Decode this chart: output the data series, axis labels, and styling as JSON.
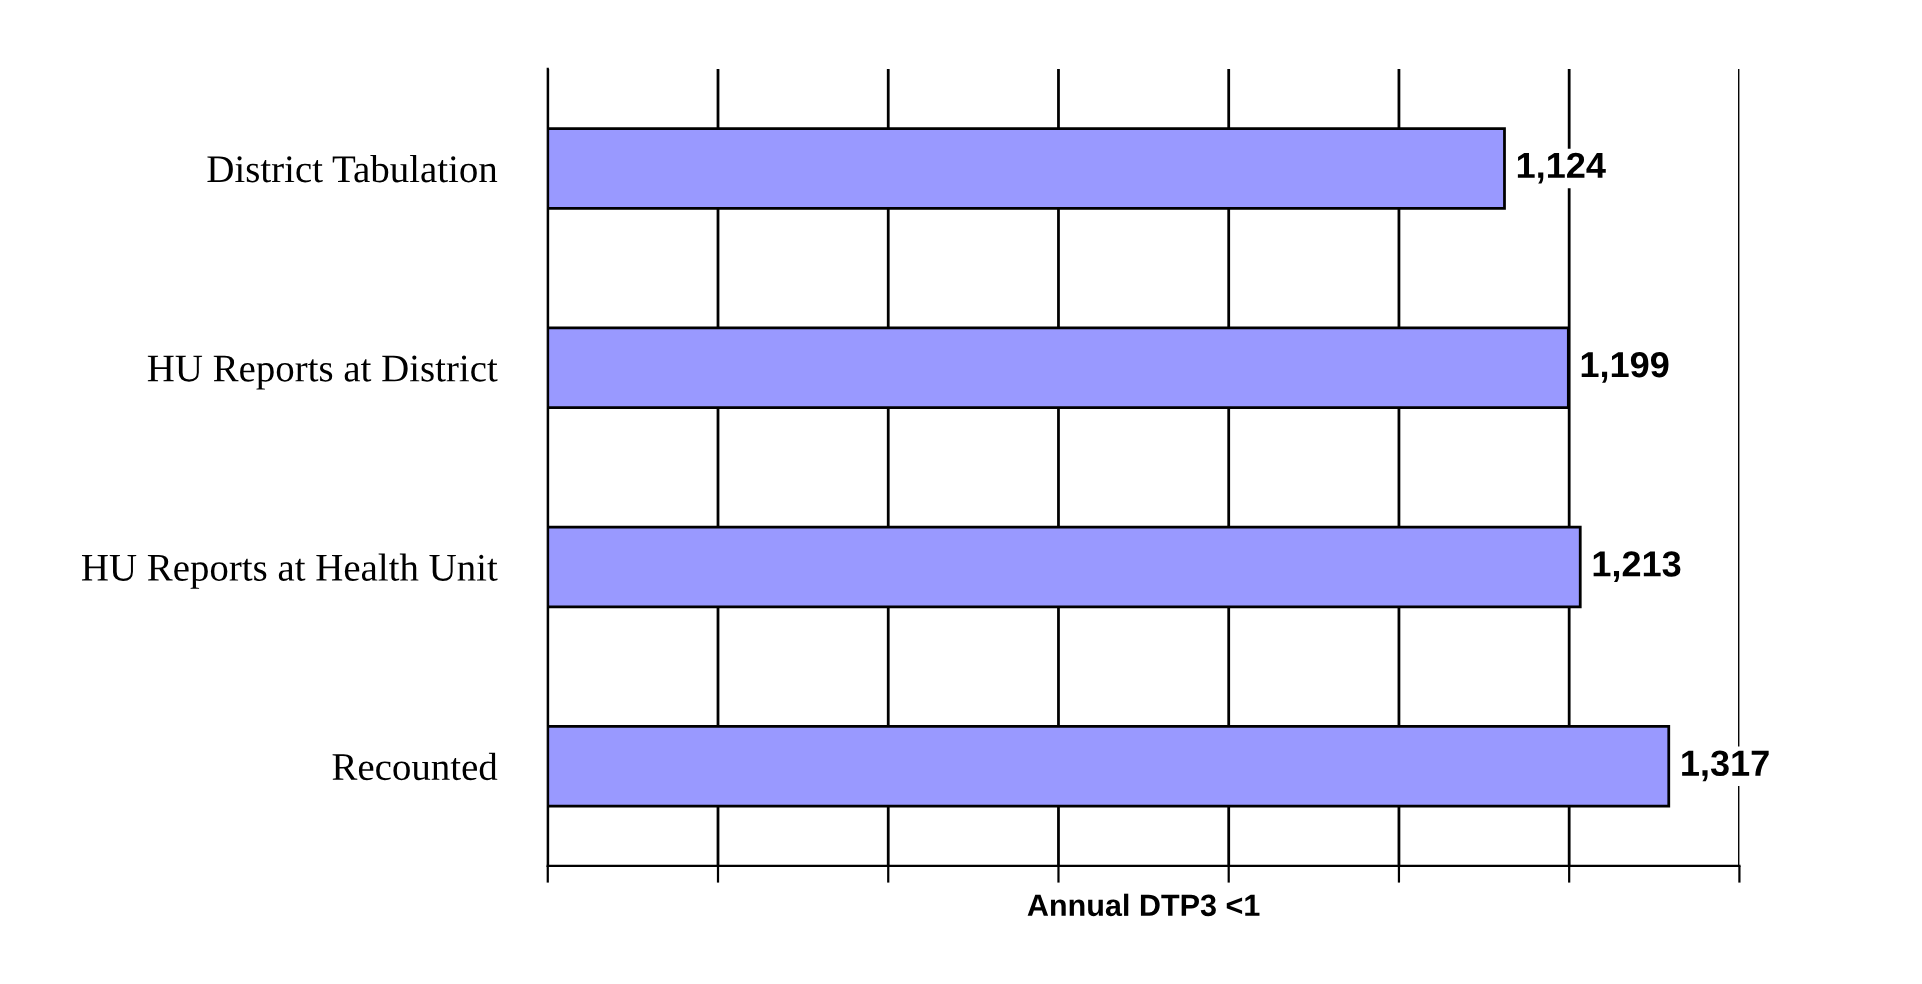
{
  "chart_data": {
    "type": "bar",
    "orientation": "horizontal",
    "xlabel": "Annual DTP3 <1",
    "categories": [
      "District Tabulation",
      "HU Reports at District",
      "HU Reports at Health Unit",
      "Recounted"
    ],
    "values": [
      1124,
      1199,
      1213,
      1317
    ],
    "value_labels": [
      "1,124",
      "1,199",
      "1,213",
      "1,317"
    ],
    "color": "#9999ff",
    "xlim": [
      0,
      1400
    ],
    "xticks": [
      {
        "value": 0,
        "label": null
      },
      {
        "value": 200,
        "label": null
      },
      {
        "value": 400,
        "label": null
      },
      {
        "value": 600,
        "label": null
      },
      {
        "value": 800,
        "label": null
      },
      {
        "value": 1000,
        "label": null
      },
      {
        "value": 1200,
        "label": null
      },
      {
        "value": 1400,
        "label": null
      }
    ],
    "tick_labels": "y",
    "grid": "x",
    "legend": false
  }
}
